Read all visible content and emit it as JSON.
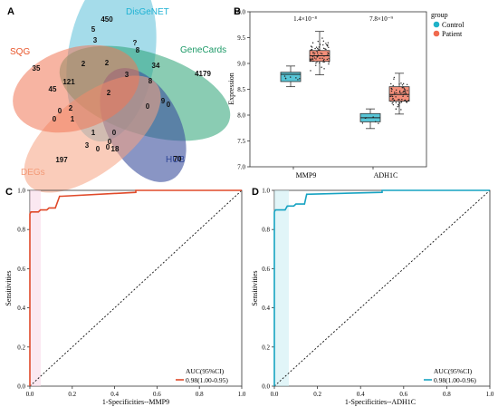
{
  "panels": {
    "A": "A",
    "B": "B",
    "C": "C",
    "D": "D"
  },
  "venn": {
    "sets": [
      {
        "name": "SQG",
        "color": "#f07755",
        "label_color": "#e8552a"
      },
      {
        "name": "DisGeNET",
        "color": "#5bbfd9",
        "label_color": "#1fb2d4"
      },
      {
        "name": "GeneCards",
        "color": "#2aa374",
        "label_color": "#1d9a68"
      },
      {
        "name": "HUB",
        "color": "#3a4f9c",
        "label_color": "#2d4596"
      },
      {
        "name": "DEGs",
        "color": "#f5a382",
        "label_color": "#f39a78"
      }
    ],
    "counts": [
      "450",
      "5",
      "3",
      "?",
      "8",
      "35",
      "2",
      "2",
      "34",
      "4179",
      "45",
      "121",
      "3",
      "8",
      "2",
      "2",
      "0",
      "0",
      "9",
      "0",
      "1",
      "0",
      "1",
      "0",
      "0",
      "3",
      "0",
      "0",
      "18",
      "197",
      "70"
    ]
  },
  "chart_data": [
    {
      "type": "box",
      "panel": "B",
      "ylabel": "Expression",
      "ylim": [
        7.0,
        10.0
      ],
      "yticks": [
        "7.0",
        "7.5",
        "8.0",
        "8.5",
        "9.0",
        "9.5",
        "10.0"
      ],
      "categories": [
        "MMP9",
        "ADH1C"
      ],
      "legend_title": "group",
      "legend_position": "top-right",
      "pvalues": [
        "1.4×10⁻⁸",
        "7.8×10⁻⁹"
      ],
      "series": [
        {
          "name": "Control",
          "color": "#1fb2c8",
          "boxes": [
            {
              "min": 8.55,
              "q1": 8.65,
              "median": 8.79,
              "q3": 8.83,
              "max": 8.95
            },
            {
              "min": 7.74,
              "q1": 7.87,
              "median": 7.95,
              "q3": 8.03,
              "max": 8.12
            }
          ]
        },
        {
          "name": "Patient",
          "color": "#f06a4e",
          "boxes": [
            {
              "min": 8.78,
              "q1": 9.04,
              "median": 9.15,
              "q3": 9.25,
              "max": 9.62
            },
            {
              "min": 8.02,
              "q1": 8.27,
              "median": 8.4,
              "q3": 8.55,
              "max": 8.81
            }
          ]
        }
      ]
    },
    {
      "type": "line",
      "panel": "C",
      "xlabel": "1-Specificities--MMP9",
      "ylabel": "Sensitivities",
      "xlim": [
        0,
        1
      ],
      "ylim": [
        0,
        1
      ],
      "xticks": [
        "0.0",
        "0.2",
        "0.4",
        "0.6",
        "0.8",
        "1.0"
      ],
      "yticks": [
        "0.0",
        "0.2",
        "0.4",
        "0.6",
        "0.8",
        "1.0"
      ],
      "legend_title": "AUC(95%CI)",
      "legend_position": "bottom-right",
      "series": [
        {
          "name": "0.98(1.00-0.95)",
          "color": "#e04a2a",
          "x": [
            0,
            0,
            0.005,
            0.04,
            0.05,
            0.08,
            0.09,
            0.12,
            0.14,
            0.15,
            0.5,
            0.5,
            1.0
          ],
          "y": [
            0,
            0.88,
            0.89,
            0.89,
            0.9,
            0.9,
            0.91,
            0.91,
            0.97,
            0.97,
            0.99,
            1.0,
            1.0
          ]
        }
      ]
    },
    {
      "type": "line",
      "panel": "D",
      "xlabel": "1-Specificities--ADH1C",
      "ylabel": "Sensitivities",
      "xlim": [
        0,
        1
      ],
      "ylim": [
        0,
        1
      ],
      "xticks": [
        "0.0",
        "0.2",
        "0.4",
        "0.6",
        "0.8",
        "1.0"
      ],
      "yticks": [
        "0.0",
        "0.2",
        "0.4",
        "0.6",
        "0.8",
        "1.0"
      ],
      "legend_title": "AUC(95%CI)",
      "legend_position": "bottom-right",
      "series": [
        {
          "name": "0.98(1.00-0.96)",
          "color": "#17a3c2",
          "x": [
            0,
            0,
            0.005,
            0.05,
            0.06,
            0.09,
            0.1,
            0.14,
            0.15,
            0.5,
            0.5,
            1.0
          ],
          "y": [
            0,
            0.89,
            0.9,
            0.9,
            0.92,
            0.92,
            0.93,
            0.93,
            0.98,
            0.99,
            1.0,
            1.0
          ]
        }
      ]
    }
  ]
}
